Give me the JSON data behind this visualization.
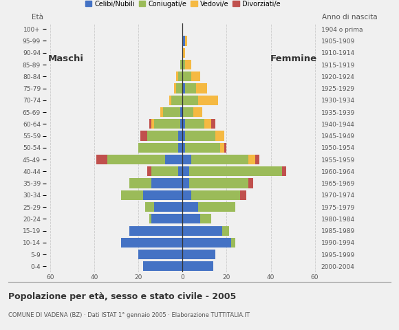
{
  "age_groups": [
    "0-4",
    "5-9",
    "10-14",
    "15-19",
    "20-24",
    "25-29",
    "30-34",
    "35-39",
    "40-44",
    "45-49",
    "50-54",
    "55-59",
    "60-64",
    "65-69",
    "70-74",
    "75-79",
    "80-84",
    "85-89",
    "90-94",
    "95-99",
    "100+"
  ],
  "birth_years": [
    "2000-2004",
    "1995-1999",
    "1990-1994",
    "1985-1989",
    "1980-1984",
    "1975-1979",
    "1970-1974",
    "1965-1969",
    "1960-1964",
    "1955-1959",
    "1950-1954",
    "1945-1949",
    "1940-1944",
    "1935-1939",
    "1930-1934",
    "1925-1929",
    "1920-1924",
    "1915-1919",
    "1910-1914",
    "1905-1909",
    "1904 o prima"
  ],
  "males_celibe": [
    18,
    20,
    28,
    24,
    14,
    13,
    18,
    14,
    2,
    8,
    2,
    2,
    1,
    1,
    0,
    0,
    0,
    0,
    0,
    0,
    0
  ],
  "males_coniugato": [
    0,
    0,
    0,
    0,
    1,
    4,
    10,
    10,
    12,
    26,
    18,
    14,
    12,
    8,
    5,
    3,
    2,
    1,
    0,
    0,
    0
  ],
  "males_vedovo": [
    0,
    0,
    0,
    0,
    0,
    0,
    0,
    0,
    0,
    0,
    0,
    0,
    1,
    1,
    1,
    1,
    1,
    0,
    0,
    0,
    0
  ],
  "males_divorziato": [
    0,
    0,
    0,
    0,
    0,
    0,
    0,
    0,
    2,
    5,
    0,
    3,
    1,
    0,
    0,
    0,
    0,
    0,
    0,
    0,
    0
  ],
  "females_nubile": [
    14,
    15,
    22,
    18,
    8,
    7,
    4,
    3,
    3,
    4,
    1,
    1,
    1,
    0,
    0,
    1,
    0,
    0,
    0,
    1,
    0
  ],
  "females_coniugata": [
    0,
    0,
    2,
    3,
    5,
    17,
    22,
    27,
    42,
    26,
    16,
    14,
    9,
    5,
    7,
    5,
    4,
    1,
    0,
    0,
    0
  ],
  "females_vedova": [
    0,
    0,
    0,
    0,
    0,
    0,
    0,
    0,
    0,
    3,
    2,
    4,
    3,
    4,
    9,
    5,
    4,
    3,
    1,
    1,
    0
  ],
  "females_divorziata": [
    0,
    0,
    0,
    0,
    0,
    0,
    3,
    2,
    2,
    2,
    1,
    0,
    2,
    0,
    0,
    0,
    0,
    0,
    0,
    0,
    0
  ],
  "color_celibe": "#4472C4",
  "color_coniugato": "#9BBB59",
  "color_vedovo": "#F5B942",
  "color_divorziato": "#C0504D",
  "title": "Popolazione per età, sesso e stato civile - 2005",
  "subtitle": "COMUNE DI VADENA (BZ) · Dati ISTAT 1° gennaio 2005 · Elaborazione TUTTITALIA.IT",
  "legend_labels": [
    "Celibi/Nubili",
    "Coniugati/e",
    "Vedovi/e",
    "Divorziati/e"
  ],
  "label_maschi": "Maschi",
  "label_femmine": "Femmine",
  "label_eta": "Età",
  "label_anno": "Anno di nascita",
  "xlim": 62,
  "background": "#f0f0f0"
}
